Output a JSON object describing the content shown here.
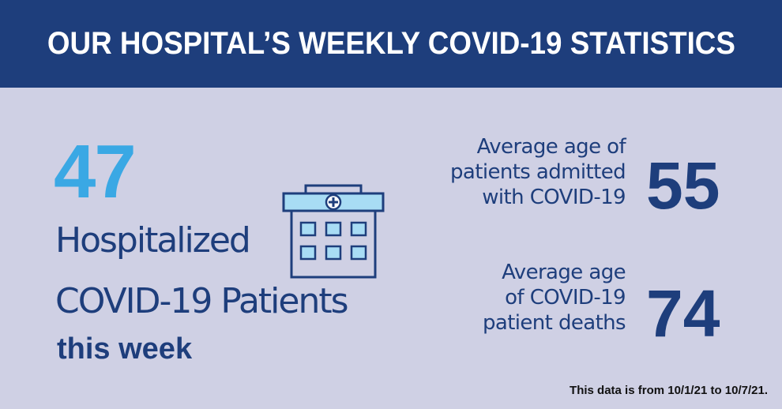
{
  "banner": {
    "title": "OUR HOSPITAL’S WEEKLY COVID-19 STATISTICS"
  },
  "hospitalized": {
    "count": "47",
    "line1": "Hospitalized",
    "line2": "COVID-19 Patients",
    "line3": "this week"
  },
  "icon": {
    "name": "hospital-building-icon"
  },
  "stats": {
    "avg_age_admitted": {
      "label_lines": [
        "Average age of",
        "patients admitted",
        "with COVID-19"
      ],
      "value": "55"
    },
    "avg_age_deaths": {
      "label_lines": [
        "Average age",
        "of COVID-19",
        "patient deaths"
      ],
      "value": "74"
    }
  },
  "footnote": "This data is from 10/1/21 to 10/7/21.",
  "colors": {
    "banner": "#1e3e7c",
    "background": "#cfd0e4",
    "accent": "#3aa8e4",
    "text": "#1e3e7c",
    "icon_fill": "#a8dcf4"
  }
}
